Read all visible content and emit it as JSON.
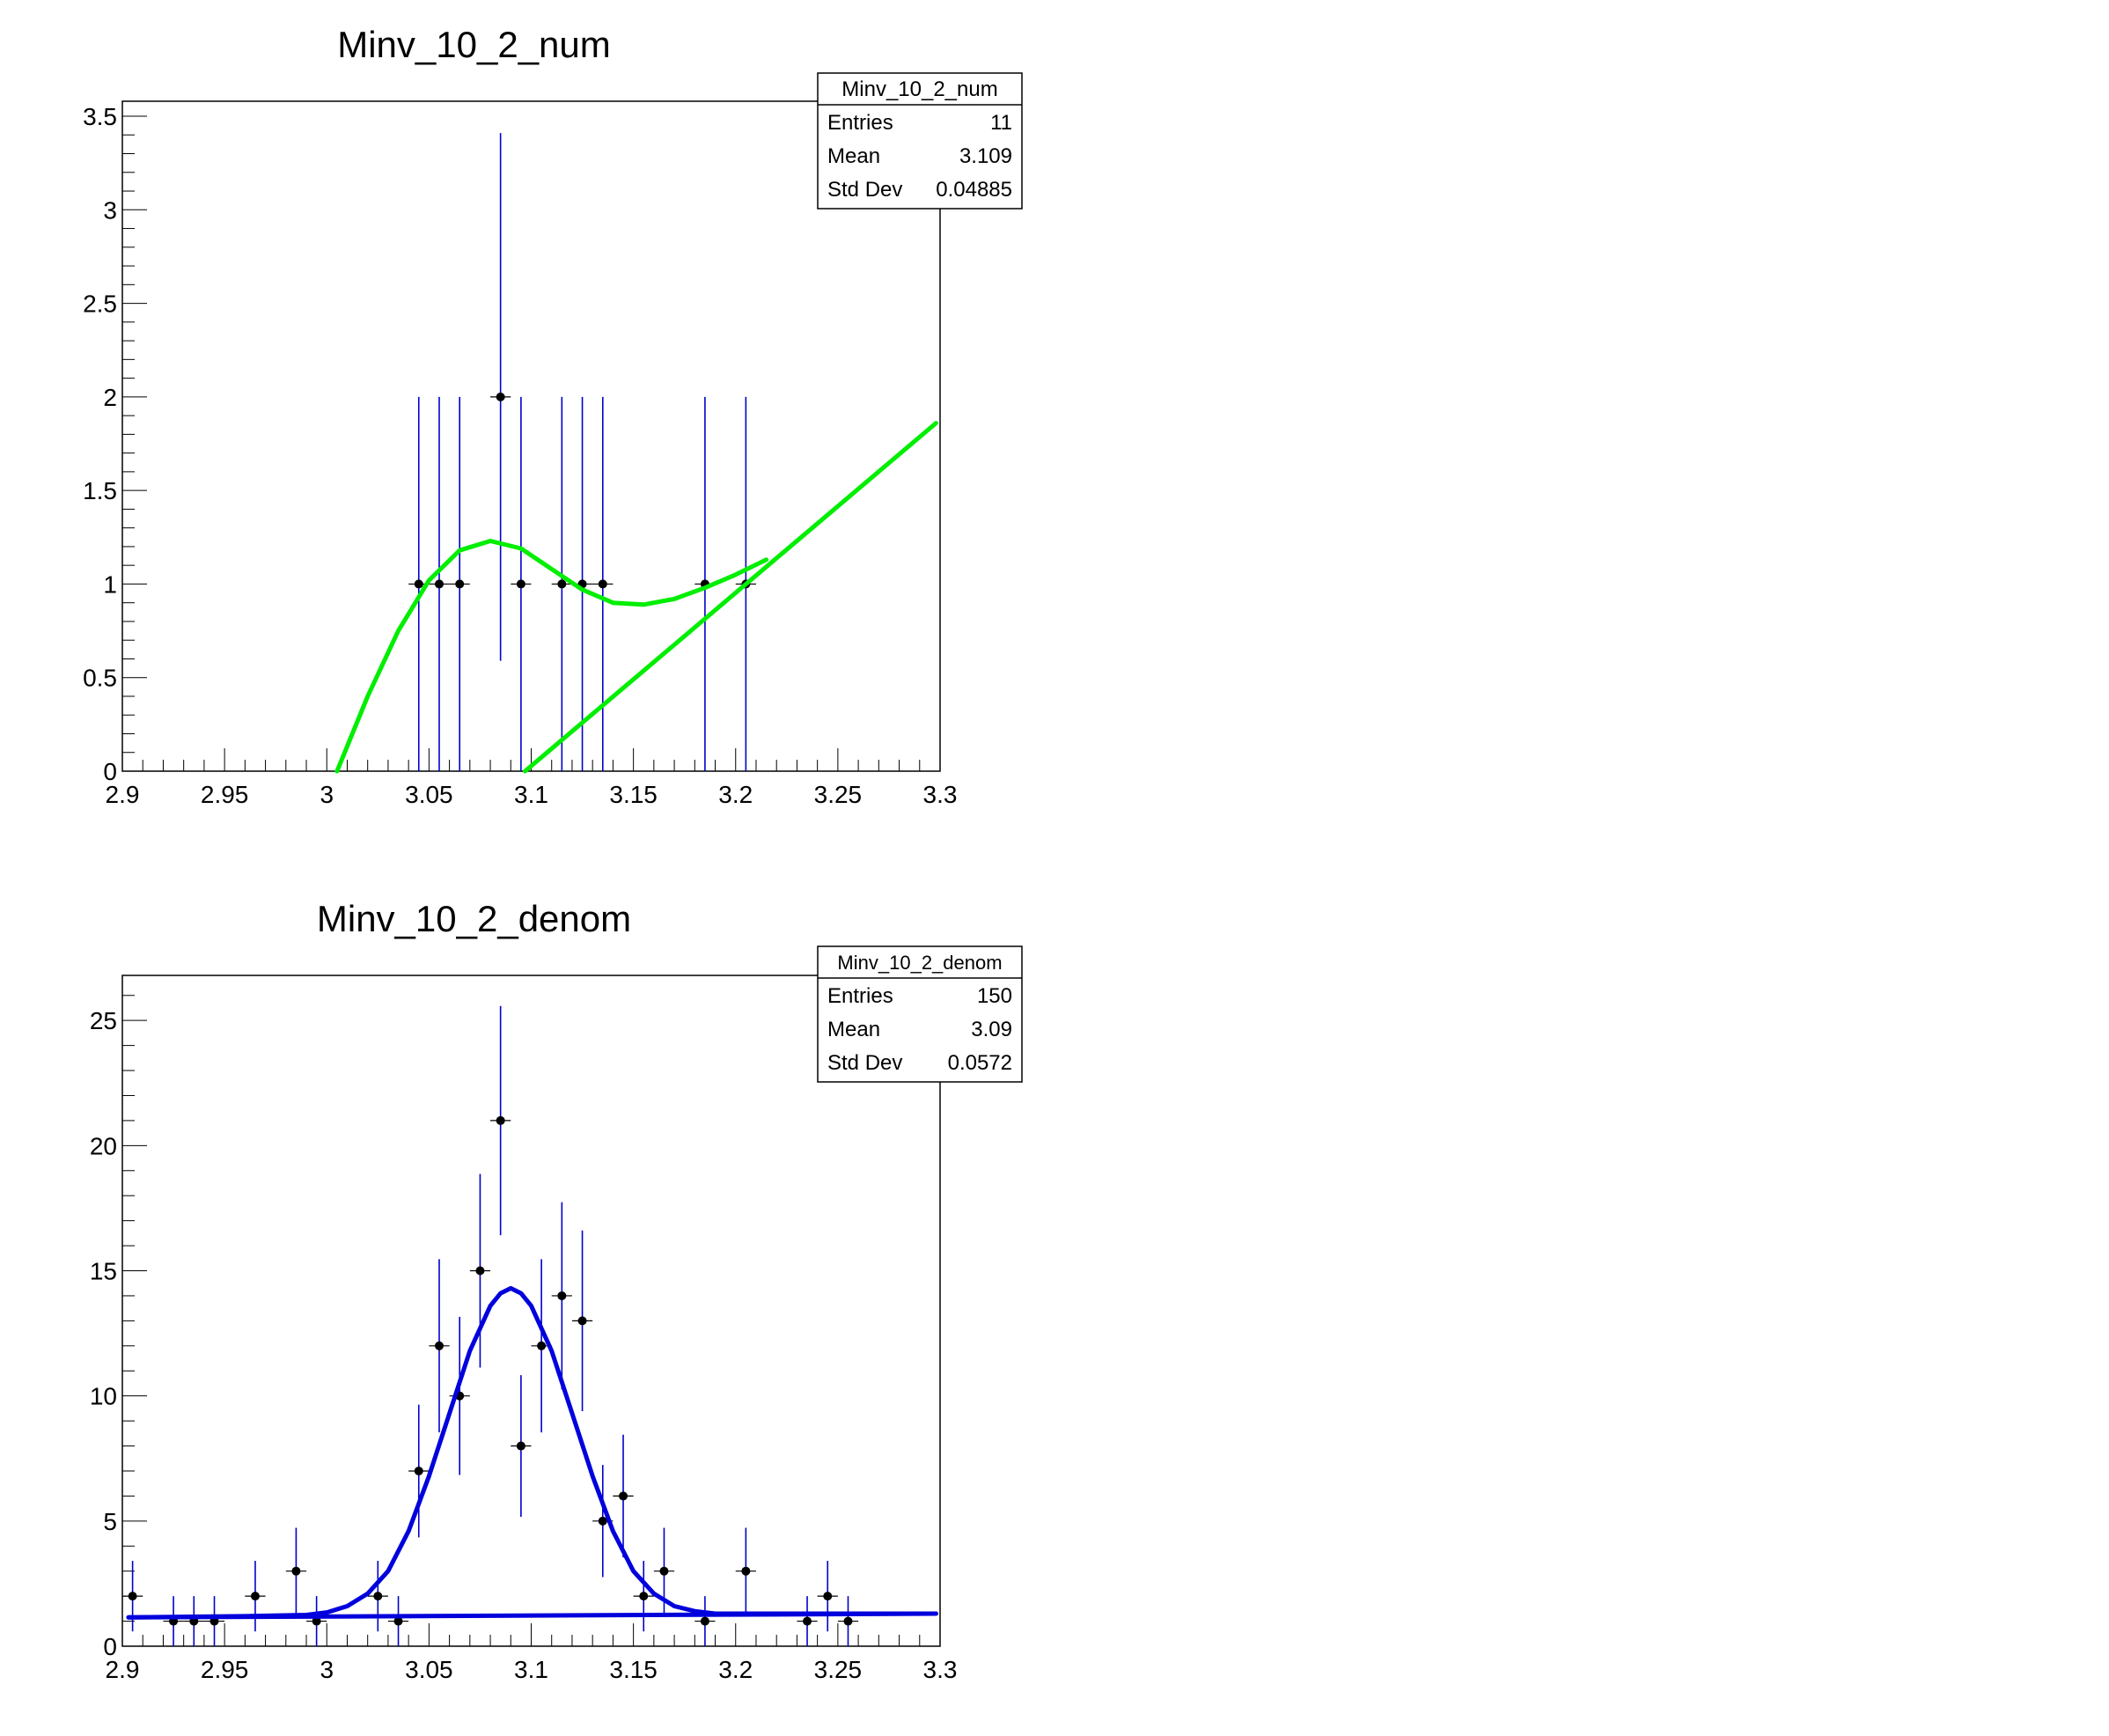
{
  "chart_data": [
    {
      "type": "scatter",
      "title": "Minv_10_2_num",
      "xlabel": "",
      "ylabel": "",
      "xlim": [
        2.9,
        3.3
      ],
      "ylim": [
        0,
        3.58
      ],
      "x_ticks": [
        "2.9",
        "2.95",
        "3",
        "3.05",
        "3.1",
        "3.15",
        "3.2",
        "3.25",
        "3.3"
      ],
      "y_ticks": [
        "0",
        "0.5",
        "1",
        "1.5",
        "2",
        "2.5",
        "3",
        "3.5"
      ],
      "bin_width": 0.01,
      "series": [
        {
          "kind": "points_with_errors",
          "color": "#0000cc",
          "points": [
            {
              "x": 3.045,
              "y": 1,
              "ylo": 0,
              "yhi": 2
            },
            {
              "x": 3.055,
              "y": 1,
              "ylo": 0,
              "yhi": 2
            },
            {
              "x": 3.065,
              "y": 1,
              "ylo": 0,
              "yhi": 2
            },
            {
              "x": 3.085,
              "y": 2,
              "ylo": 0.59,
              "yhi": 3.41
            },
            {
              "x": 3.095,
              "y": 1,
              "ylo": 0,
              "yhi": 2
            },
            {
              "x": 3.115,
              "y": 1,
              "ylo": 0,
              "yhi": 2
            },
            {
              "x": 3.125,
              "y": 1,
              "ylo": 0,
              "yhi": 2
            },
            {
              "x": 3.135,
              "y": 1,
              "ylo": 0,
              "yhi": 2
            },
            {
              "x": 3.185,
              "y": 1,
              "ylo": 0,
              "yhi": 2
            },
            {
              "x": 3.205,
              "y": 1,
              "ylo": 0,
              "yhi": 2
            }
          ]
        },
        {
          "kind": "curve",
          "color": "#00ee00",
          "x": [
            3.005,
            3.02,
            3.035,
            3.05,
            3.065,
            3.08,
            3.095,
            3.11,
            3.125,
            3.14,
            3.155,
            3.17,
            3.185,
            3.2,
            3.215
          ],
          "y": [
            0.0,
            0.4,
            0.75,
            1.02,
            1.18,
            1.23,
            1.19,
            1.08,
            0.97,
            0.9,
            0.89,
            0.92,
            0.98,
            1.05,
            1.13
          ]
        },
        {
          "kind": "curve",
          "color": "#00ee00",
          "x": [
            3.097,
            3.298
          ],
          "y": [
            0.0,
            1.86
          ]
        }
      ],
      "stats_box": {
        "name": "Minv_10_2_num",
        "rows": [
          {
            "label": "Entries",
            "value": "11"
          },
          {
            "label": "Mean",
            "value": "3.109"
          },
          {
            "label": "Std Dev",
            "value": "0.04885"
          }
        ]
      }
    },
    {
      "type": "scatter",
      "title": "Minv_10_2_denom",
      "xlabel": "",
      "ylabel": "",
      "xlim": [
        2.9,
        3.3
      ],
      "ylim": [
        0,
        26.8
      ],
      "x_ticks": [
        "2.9",
        "2.95",
        "3",
        "3.05",
        "3.1",
        "3.15",
        "3.2",
        "3.25",
        "3.3"
      ],
      "y_ticks": [
        "0",
        "5",
        "10",
        "15",
        "20",
        "25"
      ],
      "bin_width": 0.01,
      "series": [
        {
          "kind": "points_with_errors",
          "color": "#0000cc",
          "points": [
            {
              "x": 2.905,
              "y": 2,
              "ylo": 0.59,
              "yhi": 3.41
            },
            {
              "x": 2.925,
              "y": 1,
              "ylo": 0,
              "yhi": 2
            },
            {
              "x": 2.935,
              "y": 1,
              "ylo": 0,
              "yhi": 2
            },
            {
              "x": 2.945,
              "y": 1,
              "ylo": 0,
              "yhi": 2
            },
            {
              "x": 2.965,
              "y": 2,
              "ylo": 0.59,
              "yhi": 3.41
            },
            {
              "x": 2.985,
              "y": 3,
              "ylo": 1.27,
              "yhi": 4.73
            },
            {
              "x": 2.995,
              "y": 1,
              "ylo": 0,
              "yhi": 2
            },
            {
              "x": 3.025,
              "y": 2,
              "ylo": 0.59,
              "yhi": 3.41
            },
            {
              "x": 3.035,
              "y": 1,
              "ylo": 0,
              "yhi": 2
            },
            {
              "x": 3.045,
              "y": 7,
              "ylo": 4.35,
              "yhi": 9.65
            },
            {
              "x": 3.055,
              "y": 12,
              "ylo": 8.54,
              "yhi": 15.46
            },
            {
              "x": 3.065,
              "y": 10,
              "ylo": 6.84,
              "yhi": 13.16
            },
            {
              "x": 3.075,
              "y": 15,
              "ylo": 11.13,
              "yhi": 18.87
            },
            {
              "x": 3.085,
              "y": 21,
              "ylo": 16.42,
              "yhi": 25.58
            },
            {
              "x": 3.095,
              "y": 8,
              "ylo": 5.17,
              "yhi": 10.83
            },
            {
              "x": 3.105,
              "y": 12,
              "ylo": 8.54,
              "yhi": 15.46
            },
            {
              "x": 3.115,
              "y": 14,
              "ylo": 10.26,
              "yhi": 17.74
            },
            {
              "x": 3.125,
              "y": 13,
              "ylo": 9.39,
              "yhi": 16.61
            },
            {
              "x": 3.135,
              "y": 5,
              "ylo": 2.76,
              "yhi": 7.24
            },
            {
              "x": 3.145,
              "y": 6,
              "ylo": 3.55,
              "yhi": 8.45
            },
            {
              "x": 3.155,
              "y": 2,
              "ylo": 0.59,
              "yhi": 3.41
            },
            {
              "x": 3.165,
              "y": 3,
              "ylo": 1.27,
              "yhi": 4.73
            },
            {
              "x": 3.185,
              "y": 1,
              "ylo": 0,
              "yhi": 2
            },
            {
              "x": 3.205,
              "y": 3,
              "ylo": 1.27,
              "yhi": 4.73
            },
            {
              "x": 3.235,
              "y": 1,
              "ylo": 0,
              "yhi": 2
            },
            {
              "x": 3.245,
              "y": 2,
              "ylo": 0.59,
              "yhi": 3.41
            },
            {
              "x": 3.255,
              "y": 1,
              "ylo": 0,
              "yhi": 2
            }
          ]
        },
        {
          "kind": "curve",
          "color": "#0000dd",
          "x": [
            2.903,
            2.96,
            2.99,
            3.0,
            3.01,
            3.02,
            3.03,
            3.04,
            3.05,
            3.06,
            3.07,
            3.08,
            3.085,
            3.09,
            3.095,
            3.1,
            3.11,
            3.12,
            3.13,
            3.14,
            3.15,
            3.16,
            3.17,
            3.18,
            3.19,
            3.2,
            3.298
          ],
          "y": [
            1.15,
            1.2,
            1.25,
            1.35,
            1.6,
            2.1,
            3.0,
            4.6,
            6.8,
            9.3,
            11.8,
            13.6,
            14.1,
            14.3,
            14.1,
            13.6,
            11.8,
            9.3,
            6.8,
            4.6,
            3.0,
            2.1,
            1.6,
            1.4,
            1.3,
            1.3,
            1.3
          ]
        },
        {
          "kind": "curve",
          "color": "#0000dd",
          "x": [
            2.903,
            3.298
          ],
          "y": [
            1.15,
            1.3
          ]
        }
      ],
      "stats_box": {
        "name": "Minv_10_2_denom",
        "rows": [
          {
            "label": "Entries",
            "value": "150"
          },
          {
            "label": "Mean",
            "value": "3.09"
          },
          {
            "label": "Std Dev",
            "value": "0.0572"
          }
        ]
      }
    }
  ]
}
